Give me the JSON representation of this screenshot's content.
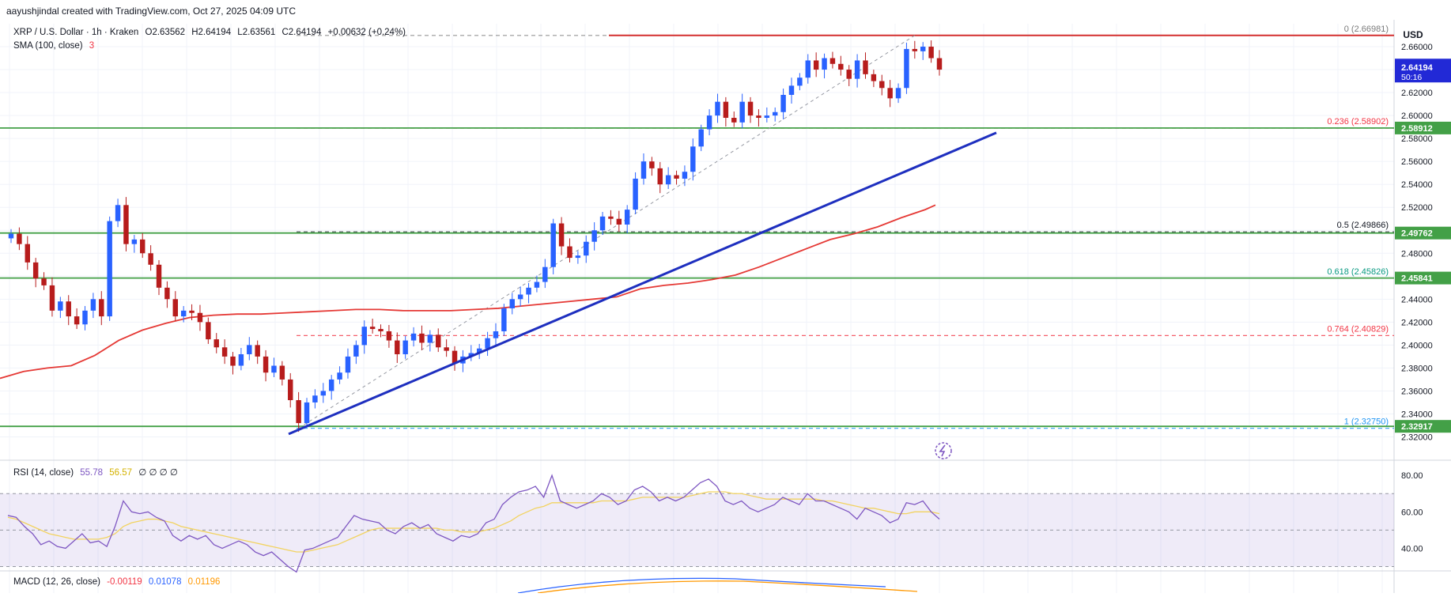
{
  "header": {
    "attribution": "aayushjindal created with TradingView.com, Oct 27, 2025 04:09 UTC"
  },
  "legend": {
    "symbol_line": "XRP / U.S. Dollar · 1h · Kraken",
    "o": "O2.63562",
    "h": "H2.64194",
    "l": "L2.63561",
    "c": "C2.64194",
    "change": "+0.00632 (+0.24%)",
    "sma_label": "SMA (100, close)",
    "sma_value": "3"
  },
  "rsi_legend": {
    "label": "RSI (14, close)",
    "v1": "55.78",
    "v2": "56.57",
    "extras": "∅ ∅ ∅ ∅"
  },
  "macd_legend": {
    "label": "MACD (12, 26, close)",
    "v1": "-0.00119",
    "v2": "0.01078",
    "v3": "0.01196"
  },
  "colors": {
    "up": "#2962ff",
    "down": "#b71c1c",
    "sma": "#e53935",
    "support": "#43a047",
    "trend": "#1e2fbf",
    "resistance": "#d32f2f",
    "fib_red": "#f23645",
    "fib_green": "#089981",
    "fib_blue": "#2196f3"
  },
  "chart_data": {
    "type": "candlestick",
    "currency": "USD",
    "y_range": [
      2.31,
      2.68
    ],
    "price_ticks": [
      "2.66000",
      "2.64000",
      "2.62000",
      "2.60000",
      "2.58000",
      "2.56000",
      "2.54000",
      "2.52000",
      "2.50000",
      "2.48000",
      "2.46000",
      "2.44000",
      "2.42000",
      "2.40000",
      "2.38000",
      "2.36000",
      "2.34000",
      "2.32000"
    ],
    "current_price": {
      "value": 2.64194,
      "label": "2.64194",
      "timer": "50:16"
    },
    "level_tags": [
      {
        "value": 2.58912,
        "label": "2.58912"
      },
      {
        "value": 2.49762,
        "label": "2.49762"
      },
      {
        "value": 2.45841,
        "label": "2.45841"
      },
      {
        "value": 2.32917,
        "label": "2.32917"
      }
    ],
    "fib_levels": [
      {
        "ratio": "0",
        "value": 2.66981,
        "label": "0 (2.66981)",
        "color": "#7a7a7a"
      },
      {
        "ratio": "0.236",
        "value": 2.58902,
        "label": "0.236 (2.58902)",
        "color": "#f23645"
      },
      {
        "ratio": "0.5",
        "value": 2.49866,
        "label": "0.5 (2.49866)",
        "color": "#131722"
      },
      {
        "ratio": "0.618",
        "value": 2.45826,
        "label": "0.618 (2.45826)",
        "color": "#089981"
      },
      {
        "ratio": "0.764",
        "value": 2.40829,
        "label": "0.764 (2.40829)",
        "color": "#f23645"
      },
      {
        "ratio": "1",
        "value": 2.3275,
        "label": "1 (2.32750)",
        "color": "#2196f3"
      }
    ],
    "close_series": [
      2.497,
      2.488,
      2.472,
      2.458,
      2.452,
      2.43,
      2.438,
      2.425,
      2.418,
      2.43,
      2.44,
      2.425,
      2.508,
      2.522,
      2.488,
      2.492,
      2.48,
      2.47,
      2.45,
      2.44,
      2.425,
      2.43,
      2.428,
      2.42,
      2.405,
      2.398,
      2.39,
      2.382,
      2.392,
      2.4,
      2.39,
      2.376,
      2.382,
      2.37,
      2.352,
      2.332,
      2.35,
      2.356,
      2.36,
      2.37,
      2.376,
      2.39,
      2.4,
      2.416,
      2.414,
      2.412,
      2.404,
      2.392,
      2.404,
      2.41,
      2.402,
      2.409,
      2.398,
      2.395,
      2.384,
      2.39,
      2.393,
      2.397,
      2.406,
      2.412,
      2.432,
      2.44,
      2.444,
      2.45,
      2.455,
      2.468,
      2.506,
      2.486,
      2.476,
      2.478,
      2.49,
      2.5,
      2.512,
      2.51,
      2.505,
      2.518,
      2.545,
      2.56,
      2.554,
      2.54,
      2.548,
      2.545,
      2.551,
      2.573,
      2.588,
      2.6,
      2.612,
      2.598,
      2.594,
      2.612,
      2.6,
      2.598,
      2.6,
      2.603,
      2.618,
      2.626,
      2.633,
      2.648,
      2.64,
      2.65,
      2.645,
      2.64,
      2.632,
      2.648,
      2.636,
      2.63,
      2.624,
      2.615,
      2.624,
      2.658,
      2.656,
      2.66,
      2.65,
      2.64
    ],
    "sma100_series": [
      [
        0,
        2.371
      ],
      [
        30,
        2.377
      ],
      [
        60,
        2.38
      ],
      [
        90,
        2.382
      ],
      [
        120,
        2.391
      ],
      [
        150,
        2.404
      ],
      [
        180,
        2.413
      ],
      [
        210,
        2.419
      ],
      [
        240,
        2.424
      ],
      [
        270,
        2.426
      ],
      [
        300,
        2.427
      ],
      [
        330,
        2.427
      ],
      [
        360,
        2.428
      ],
      [
        390,
        2.429
      ],
      [
        420,
        2.43
      ],
      [
        450,
        2.431
      ],
      [
        480,
        2.431
      ],
      [
        510,
        2.43
      ],
      [
        540,
        2.43
      ],
      [
        570,
        2.43
      ],
      [
        600,
        2.431
      ],
      [
        630,
        2.432
      ],
      [
        660,
        2.434
      ],
      [
        690,
        2.436
      ],
      [
        720,
        2.438
      ],
      [
        750,
        2.44
      ],
      [
        780,
        2.442
      ],
      [
        810,
        2.449
      ],
      [
        840,
        2.452
      ],
      [
        870,
        2.454
      ],
      [
        900,
        2.457
      ],
      [
        930,
        2.461
      ],
      [
        960,
        2.468
      ],
      [
        990,
        2.476
      ],
      [
        1020,
        2.484
      ],
      [
        1050,
        2.492
      ],
      [
        1080,
        2.497
      ],
      [
        1110,
        2.503
      ],
      [
        1140,
        2.511
      ],
      [
        1170,
        2.518
      ],
      [
        1183,
        2.522
      ]
    ],
    "support_lines": [
      2.58912,
      2.49762,
      2.45841,
      2.32917
    ],
    "resistance_line": {
      "value": 2.66981,
      "x_from": 770
    },
    "trendline": {
      "from": [
        365,
        2.3225
      ],
      "to": [
        1260,
        2.585
      ]
    },
    "rsi": {
      "ticks": [
        "80.00",
        "60.00",
        "40.00"
      ],
      "band": [
        30,
        70
      ],
      "mid": 50,
      "y_range": [
        25,
        84
      ],
      "series": [
        58,
        57,
        52,
        48,
        42,
        44,
        41,
        40,
        44,
        48,
        43,
        44,
        41,
        52,
        66,
        60,
        59,
        60,
        57,
        55,
        47,
        44,
        47,
        45,
        47,
        42,
        40,
        42,
        44,
        42,
        38,
        36,
        38,
        34,
        30,
        27,
        39,
        40,
        42,
        44,
        46,
        52,
        58,
        56,
        55,
        54,
        50,
        48,
        52,
        54,
        51,
        53,
        48,
        46,
        44,
        47,
        46,
        48,
        54,
        56,
        64,
        68,
        71,
        72,
        74,
        68,
        80,
        66,
        64,
        62,
        64,
        66,
        70,
        68,
        64,
        66,
        72,
        74,
        71,
        66,
        68,
        66,
        68,
        72,
        76,
        78,
        74,
        66,
        64,
        66,
        62,
        60,
        62,
        64,
        68,
        66,
        64,
        70,
        66,
        66,
        64,
        62,
        60,
        56,
        62,
        60,
        58,
        54,
        56,
        65,
        64,
        66,
        60,
        56
      ],
      "signal": [
        57,
        56,
        54,
        52,
        50,
        48,
        47,
        46,
        45,
        45,
        45,
        45,
        46,
        48,
        52,
        54,
        55,
        56,
        56,
        55,
        54,
        52,
        51,
        50,
        49,
        48,
        47,
        46,
        45,
        44,
        43,
        42,
        41,
        40,
        39,
        38,
        38,
        39,
        40,
        41,
        42,
        44,
        46,
        48,
        50,
        51,
        51,
        51,
        51,
        51,
        51,
        51,
        51,
        50,
        50,
        49,
        49,
        49,
        50,
        51,
        53,
        55,
        58,
        60,
        62,
        63,
        65,
        65,
        65,
        65,
        65,
        65,
        66,
        66,
        66,
        66,
        67,
        68,
        68,
        68,
        68,
        68,
        68,
        69,
        70,
        71,
        71,
        71,
        70,
        70,
        69,
        68,
        67,
        67,
        67,
        67,
        67,
        67,
        67,
        66,
        66,
        65,
        64,
        63,
        62,
        62,
        61,
        60,
        59,
        59,
        60,
        60,
        60,
        59
      ]
    }
  }
}
